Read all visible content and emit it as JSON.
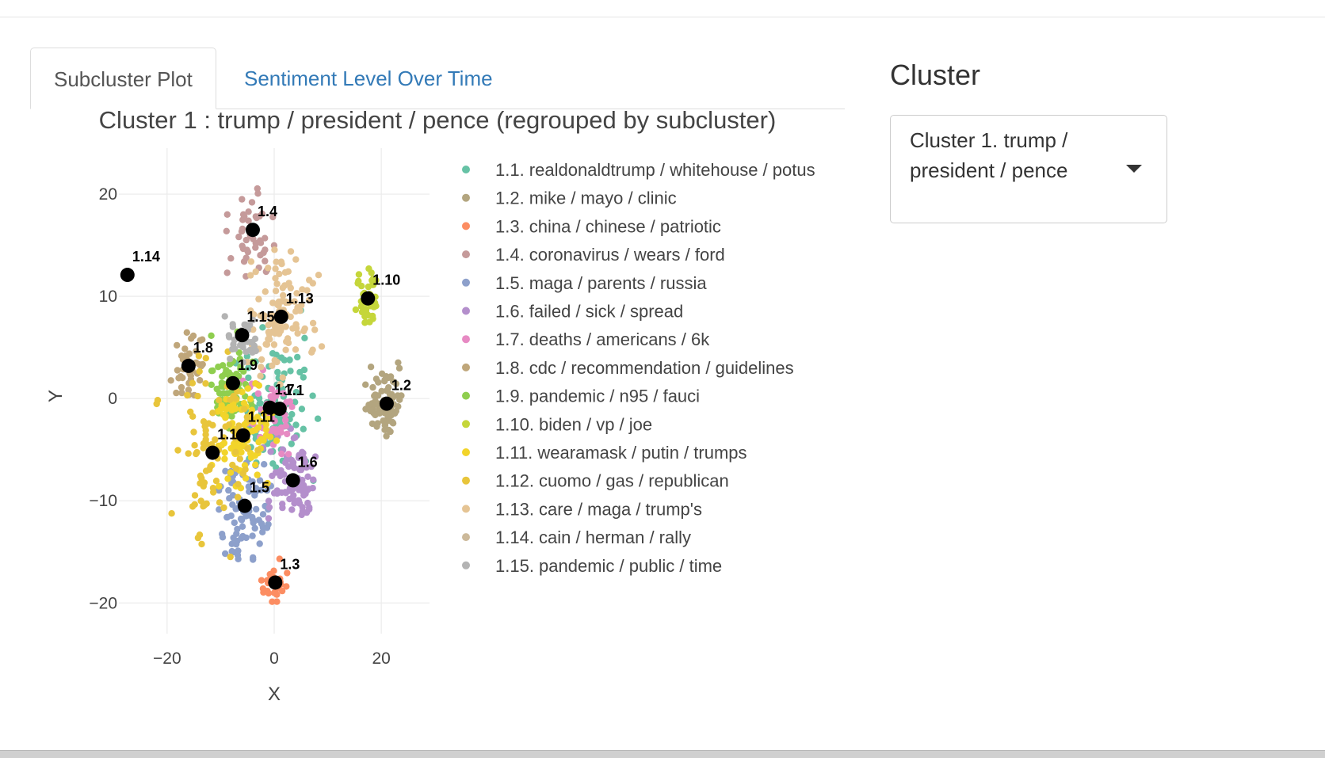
{
  "tabs": [
    {
      "label": "Subcluster Plot",
      "active": true
    },
    {
      "label": "Sentiment Level Over Time",
      "active": false
    }
  ],
  "sidebar": {
    "title": "Cluster",
    "select_value": "Cluster 1. trump / president / pence"
  },
  "colors": {
    "tab_link": "#337ab7",
    "centroid": "#000000"
  },
  "chart_data": {
    "type": "scatter",
    "title": "Cluster 1 : trump / president / pence (regrouped by subcluster)",
    "xlabel": "X",
    "ylabel": "Y",
    "xlim": [
      -29,
      29
    ],
    "ylim": [
      -23,
      24.5
    ],
    "xticks": [
      -20,
      0,
      20
    ],
    "yticks": [
      -20,
      -10,
      0,
      10,
      20
    ],
    "xtick_labels": [
      "−20",
      "0",
      "20"
    ],
    "ytick_labels": [
      "−20",
      "−10",
      "0",
      "10",
      "20"
    ],
    "grid": true,
    "legend_position": "right",
    "series": [
      {
        "id": "1.1",
        "name": "1.1. realdonaldtrump / whitehouse / potus",
        "color": "#66c2a5",
        "centroid": [
          -0.3,
          -0.9
        ],
        "spread": [
          6,
          6
        ],
        "count": 110
      },
      {
        "id": "1.2",
        "name": "1.2. mike / mayo / clinic",
        "color": "#b3a57f",
        "centroid": [
          21,
          -0.5
        ],
        "spread": [
          3,
          3
        ],
        "count": 95
      },
      {
        "id": "1.3",
        "name": "1.3. china / chinese / patriotic",
        "color": "#fc8d62",
        "centroid": [
          0.2,
          -18
        ],
        "spread": [
          2.2,
          1.6
        ],
        "count": 35
      },
      {
        "id": "1.4",
        "name": "1.4. coronavirus / wears / ford",
        "color": "#c59a9a",
        "centroid": [
          -4,
          16.5
        ],
        "spread": [
          4,
          3.5
        ],
        "count": 45
      },
      {
        "id": "1.5",
        "name": "1.5. maga / parents / russia",
        "color": "#8da0cb",
        "centroid": [
          -5.5,
          -10.5
        ],
        "spread": [
          5,
          4.5
        ],
        "count": 85
      },
      {
        "id": "1.6",
        "name": "1.6. failed / sick / spread",
        "color": "#b48fcc",
        "centroid": [
          3.5,
          -8
        ],
        "spread": [
          4,
          3.5
        ],
        "count": 85
      },
      {
        "id": "1.7",
        "name": "1.7. deaths / americans / 6k",
        "color": "#e78ac3",
        "centroid": [
          -0.8,
          -0.9
        ],
        "spread": [
          4,
          4
        ],
        "count": 50
      },
      {
        "id": "1.8",
        "name": "1.8. cdc / recommendation / guidelines",
        "color": "#bfa67a",
        "centroid": [
          -16,
          3.2
        ],
        "spread": [
          2,
          3
        ],
        "count": 40
      },
      {
        "id": "1.9",
        "name": "1.9. pandemic / n95 / fauci",
        "color": "#8fce4f",
        "centroid": [
          -7.7,
          1.5
        ],
        "spread": [
          3,
          3.5
        ],
        "count": 70
      },
      {
        "id": "1.10",
        "name": "1.10. biden / vp / joe",
        "color": "#c5d63a",
        "centroid": [
          17.5,
          9.8
        ],
        "spread": [
          1.8,
          2.5
        ],
        "count": 45
      },
      {
        "id": "1.11",
        "name": "1.11. wearamask / putin / trumps",
        "color": "#f2d42a",
        "centroid": [
          -5.8,
          -3.6
        ],
        "spread": [
          5,
          4.5
        ],
        "count": 95
      },
      {
        "id": "1.12",
        "name": "1.12. cuomo / gas / republican",
        "color": "#e8c53b",
        "centroid": [
          -11.5,
          -5.3
        ],
        "spread": [
          7,
          9
        ],
        "count": 90
      },
      {
        "id": "1.13",
        "name": "1.13. care / maga / trump's",
        "color": "#e5c494",
        "centroid": [
          1.3,
          8
        ],
        "spread": [
          5,
          5
        ],
        "count": 110
      },
      {
        "id": "1.14",
        "name": "1.14. cain / herman / rally",
        "color": "#ccb99a",
        "centroid": [
          -27.4,
          12.1
        ],
        "spread": [
          0,
          0
        ],
        "count": 0
      },
      {
        "id": "1.15",
        "name": "1.15. pandemic / public / time",
        "color": "#b3b3b3",
        "centroid": [
          -6,
          6.2
        ],
        "spread": [
          2.5,
          2.5
        ],
        "count": 35
      }
    ],
    "centroid_labels": [
      {
        "text": "1.1",
        "x": 1.0,
        "y": -1.0
      },
      {
        "text": "1.2",
        "x": 21.0,
        "y": -0.5
      },
      {
        "text": "1.3",
        "x": 0.2,
        "y": -18.0
      },
      {
        "text": "1.4",
        "x": -4.0,
        "y": 16.5
      },
      {
        "text": "1.5",
        "x": -5.5,
        "y": -10.5
      },
      {
        "text": "1.6",
        "x": 3.5,
        "y": -8.0
      },
      {
        "text": "1.7",
        "x": -0.8,
        "y": -0.9
      },
      {
        "text": "1.8",
        "x": -16.0,
        "y": 3.2
      },
      {
        "text": "1.9",
        "x": -7.7,
        "y": 1.5
      },
      {
        "text": "1.10",
        "x": 17.5,
        "y": 9.8
      },
      {
        "text": "1.11",
        "x": -5.8,
        "y": -3.6
      },
      {
        "text": "1.12",
        "x": -11.5,
        "y": -5.3
      },
      {
        "text": "1.13",
        "x": 1.3,
        "y": 8.0
      },
      {
        "text": "1.14",
        "x": -27.4,
        "y": 12.1
      },
      {
        "text": "1.15",
        "x": -6.0,
        "y": 6.2
      }
    ]
  }
}
